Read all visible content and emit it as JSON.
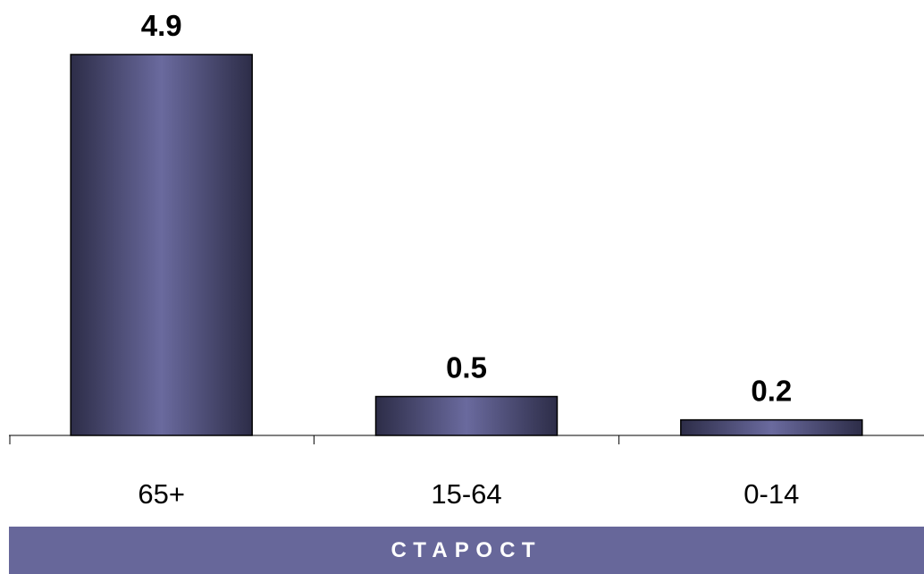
{
  "chart_data": {
    "type": "bar",
    "categories": [
      "65+",
      "15-64",
      "0-14"
    ],
    "values": [
      4.9,
      0.5,
      0.2
    ],
    "value_labels": [
      "4.9",
      "0.5",
      "0.2"
    ],
    "title": "",
    "xlabel": "СТАРОСТ",
    "ylabel": "",
    "ylim": [
      0,
      4.9
    ],
    "grid": false,
    "legend": "none"
  },
  "colors": {
    "bar_dark": "#2d2d48",
    "bar_light": "#6a6a9e",
    "bar_outline": "#000000",
    "axis": "#000000",
    "title_bar_bg": "#67679a",
    "title_bar_text": "#ffffff"
  }
}
